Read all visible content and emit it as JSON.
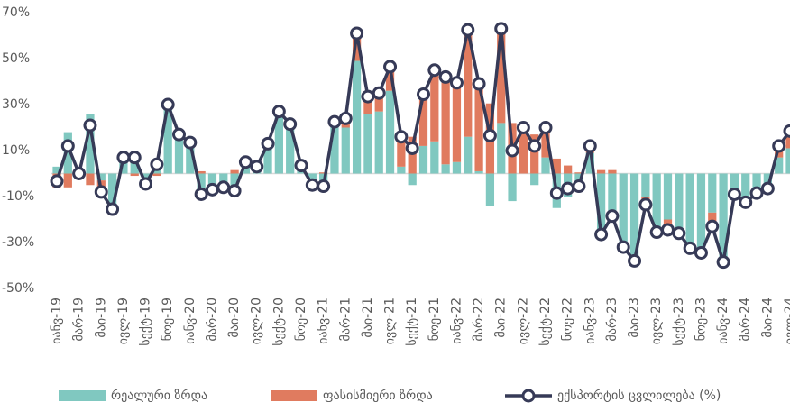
{
  "chart_data": {
    "type": "combo",
    "categories": [
      "იანვ-19",
      null,
      "მარ-19",
      null,
      "მაი-19",
      null,
      "ივლ-19",
      null,
      "სექტ-19",
      null,
      "ნოე-19",
      null,
      "იანვ-20",
      null,
      "მარ-20",
      null,
      "მაი-20",
      null,
      "ივლ-20",
      null,
      "სექტ-20",
      null,
      "ნოე-20",
      null,
      "იანვ-21",
      null,
      "მარ-21",
      null,
      "მაი-21",
      null,
      "ივლ-21",
      null,
      "სექტ-21",
      null,
      "ნოე-21",
      null,
      "იანვ-22",
      null,
      "მარ-22",
      null,
      "მაი-22",
      null,
      "ივლ-22",
      null,
      "სექტ-22",
      null,
      "ნოე-22",
      null,
      "იანვ-23",
      null,
      "მარ-23",
      null,
      "მაი-23",
      null,
      "ივლ-23",
      null,
      "სექტ-23",
      null,
      "ნოე-23",
      null,
      "იანვ-24",
      null,
      "მარ-24",
      null,
      "მაი-24",
      null,
      "ივლ-24"
    ],
    "series": [
      {
        "name": "რეალური ზრდა",
        "kind": "bar",
        "color": "#80c8c0",
        "values": [
          3,
          18,
          1,
          26,
          -3,
          -15,
          7,
          8,
          -4,
          5,
          29,
          17,
          12,
          -10,
          -7,
          -5,
          -9,
          4,
          3,
          12,
          26,
          21,
          3,
          -5,
          -6,
          22,
          20,
          49,
          26,
          27,
          36,
          3,
          -5,
          12,
          14,
          4,
          5,
          16,
          1,
          -14,
          22,
          -12,
          0,
          -5,
          7,
          -15,
          -10,
          -6,
          9,
          -28,
          -20,
          -32,
          -38,
          -10,
          -25,
          -20,
          -26,
          -32,
          -34,
          -17,
          -38,
          -9,
          -12,
          -8,
          -6,
          7,
          11
        ]
      },
      {
        "name": "ფასისმიერი ზრდა",
        "kind": "bar",
        "color": "#e07b5f",
        "values": [
          -6,
          -6,
          -1,
          -5,
          -5,
          -1,
          0,
          -1,
          -1,
          -1,
          1,
          0,
          1,
          1,
          0,
          -1,
          1.5,
          1,
          0,
          1,
          1,
          0.5,
          0.5,
          0,
          0.5,
          0.5,
          4,
          12,
          7.5,
          8,
          10.5,
          13,
          16,
          22.5,
          31,
          38,
          34.5,
          46.5,
          38,
          30.5,
          41,
          22,
          20,
          17,
          13,
          6.5,
          3.5,
          0.5,
          3,
          1.5,
          1.5,
          0,
          0,
          -3.5,
          -0.5,
          -4.5,
          0,
          -0.5,
          -0.5,
          -6,
          -0.5,
          0,
          -0.5,
          -0.5,
          -0.5,
          5,
          7.5
        ]
      },
      {
        "name": "ექსპორტის ცვლილება (%)",
        "kind": "line",
        "color": "#363a57",
        "values": [
          -3.3,
          12,
          0,
          21,
          -8,
          -15.5,
          7,
          7,
          -4.5,
          4,
          30,
          17,
          13.5,
          -9,
          -7,
          -6,
          -7.5,
          5,
          3,
          13,
          27,
          21.5,
          3.5,
          -5,
          -5.5,
          22.5,
          24,
          61,
          33.5,
          35,
          46.5,
          16,
          11,
          34.5,
          45,
          42,
          39.5,
          62.5,
          39,
          16.5,
          63,
          10,
          20,
          12,
          20,
          -8.5,
          -6.5,
          -5.5,
          12,
          -26.5,
          -18.5,
          -32,
          -38,
          -13.5,
          -25.5,
          -24.5,
          -26,
          -32.5,
          -34.5,
          -23,
          -38.5,
          -9,
          -12.5,
          -8.5,
          -6.5,
          12,
          18.5
        ]
      }
    ],
    "ylim": [
      -50,
      70
    ],
    "yticks": [
      {
        "value": -50,
        "label": "-50%"
      },
      {
        "value": -30,
        "label": "-30%"
      },
      {
        "value": -10,
        "label": "-10%"
      },
      {
        "value": 10,
        "label": "10%"
      },
      {
        "value": 30,
        "label": "30%"
      },
      {
        "value": 50,
        "label": "50%"
      },
      {
        "value": 70,
        "label": "70%"
      }
    ],
    "grid": false,
    "legend": "bottom"
  }
}
